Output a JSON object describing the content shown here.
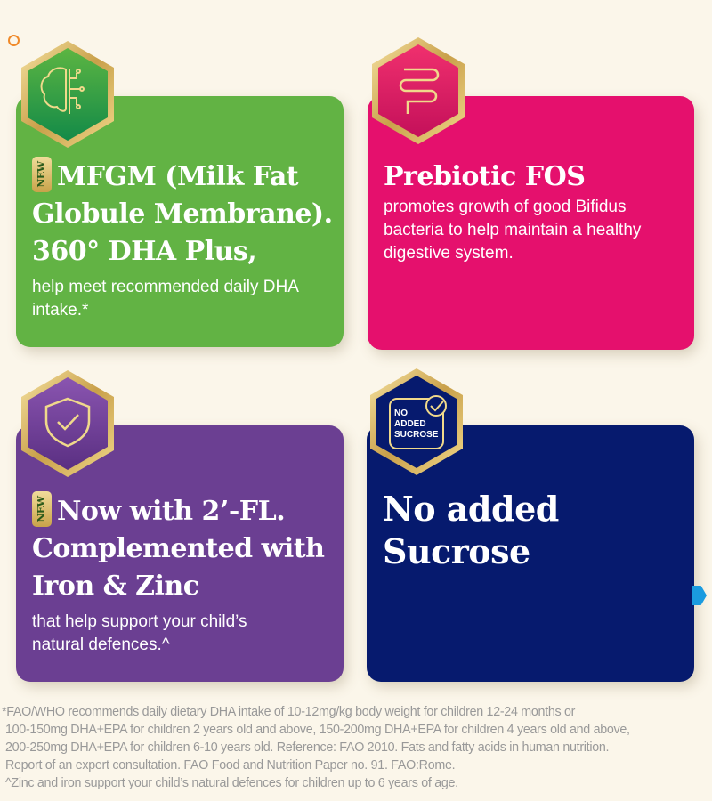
{
  "cards": [
    {
      "badge": "NEW",
      "title": "MFGM (Milk Fat Globule Membrane). 360° DHA Plus,",
      "body": "help meet recommended daily DHA intake.*",
      "color": "#62b344",
      "icon": "brain-circuit-icon"
    },
    {
      "title": "Prebiotic FOS",
      "body": "promotes growth of good Bifidus bacteria to help maintain a healthy digestive system.",
      "color": "#e5106d",
      "icon": "intestine-icon"
    },
    {
      "badge": "NEW",
      "title": "Now with 2’-FL. Complemented with Iron & Zinc",
      "body": "that help support your child’s natural defences.^",
      "color": "#6b3f92",
      "icon": "shield-check-icon"
    },
    {
      "title": "No added Sucrose",
      "color": "#061a6e",
      "icon": "no-added-sucrose-icon",
      "icon_text": [
        "NO",
        "ADDED",
        "SUCROSE"
      ]
    }
  ],
  "footnotes": [
    "*FAO/WHO recommends daily dietary DHA intake of 10-12mg/kg body weight for children 12-24 months or",
    "100-150mg DHA+EPA for children 2 years old and above, 150-200mg DHA+EPA for children 4 years old and above,",
    "200-250mg DHA+EPA for children 6-10 years old. Reference: FAO 2010. Fats and fatty acids in human nutrition.",
    "Report of an expert consultation. FAO Food and Nutrition Paper no. 91. FAO:Rome.",
    "^Zinc and iron support your child’s natural defences for children up to 6 years of age."
  ]
}
